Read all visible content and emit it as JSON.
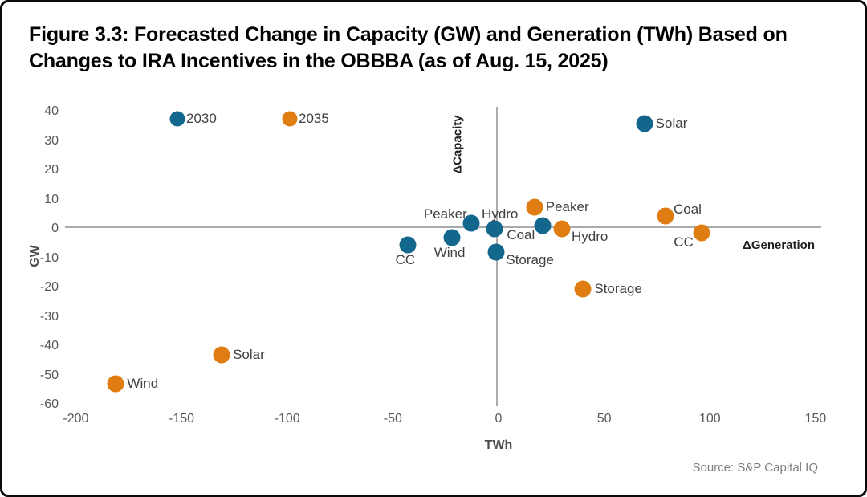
{
  "figure": {
    "title": "Figure 3.3: Forecasted Change in Capacity (GW) and Generation (TWh) Based on Changes to IRA Incentives in the OBBBA (as of Aug. 15, 2025)",
    "source": "Source: S&P Capital IQ"
  },
  "colors": {
    "teal": "#14678c",
    "orange": "#e07d12",
    "axis_line": "#a9abae",
    "tick_text": "#58595b",
    "label_text": "#414042"
  },
  "chart_data": {
    "type": "scatter",
    "xlabel": "TWh",
    "ylabel": "GW",
    "x_axis_annotation": "ΔGeneration",
    "y_axis_annotation": "ΔCapacity",
    "xlim": [
      -200,
      150
    ],
    "ylim": [
      -60,
      40
    ],
    "x_ticks": [
      -200,
      -150,
      -100,
      -50,
      0,
      50,
      100,
      150
    ],
    "y_ticks": [
      40,
      30,
      20,
      10,
      0,
      -10,
      -20,
      -30,
      -40,
      -50,
      -60
    ],
    "grid": false,
    "legend": [
      {
        "name": "2030",
        "color_key": "teal"
      },
      {
        "name": "2035",
        "color_key": "orange"
      }
    ],
    "legend_position": "top-left-inside",
    "series": [
      {
        "name": "2030",
        "color_key": "teal",
        "points": [
          {
            "label": "Solar",
            "x": 69,
            "y": 36,
            "label_pos": "right"
          },
          {
            "label": "Peaker",
            "x": -13,
            "y": 2,
            "label_pos": "above-left"
          },
          {
            "label": "Hydro",
            "x": -2,
            "y": 0,
            "label_pos": "above"
          },
          {
            "label": "Coal",
            "x": 21,
            "y": 1,
            "label_pos": "below-left"
          },
          {
            "label": "CC",
            "x": -43,
            "y": -5.5,
            "label_pos": "below"
          },
          {
            "label": "Wind",
            "x": -22,
            "y": -3,
            "label_pos": "below"
          },
          {
            "label": "Storage",
            "x": -1,
            "y": -8,
            "label_pos": "below-right"
          }
        ]
      },
      {
        "name": "2035",
        "color_key": "orange",
        "points": [
          {
            "label": "Peaker",
            "x": 17,
            "y": 7.5,
            "label_pos": "right"
          },
          {
            "label": "Hydro",
            "x": 30,
            "y": 0,
            "label_pos": "below-right"
          },
          {
            "label": "Coal",
            "x": 79,
            "y": 4.5,
            "label_pos": "above-right"
          },
          {
            "label": "CC",
            "x": 96,
            "y": -1.5,
            "label_pos": "below-left"
          },
          {
            "label": "Storage",
            "x": 40,
            "y": -20.5,
            "label_pos": "right"
          },
          {
            "label": "Solar",
            "x": -131,
            "y": -43,
            "label_pos": "right"
          },
          {
            "label": "Wind",
            "x": -181,
            "y": -53,
            "label_pos": "right"
          }
        ]
      }
    ]
  }
}
